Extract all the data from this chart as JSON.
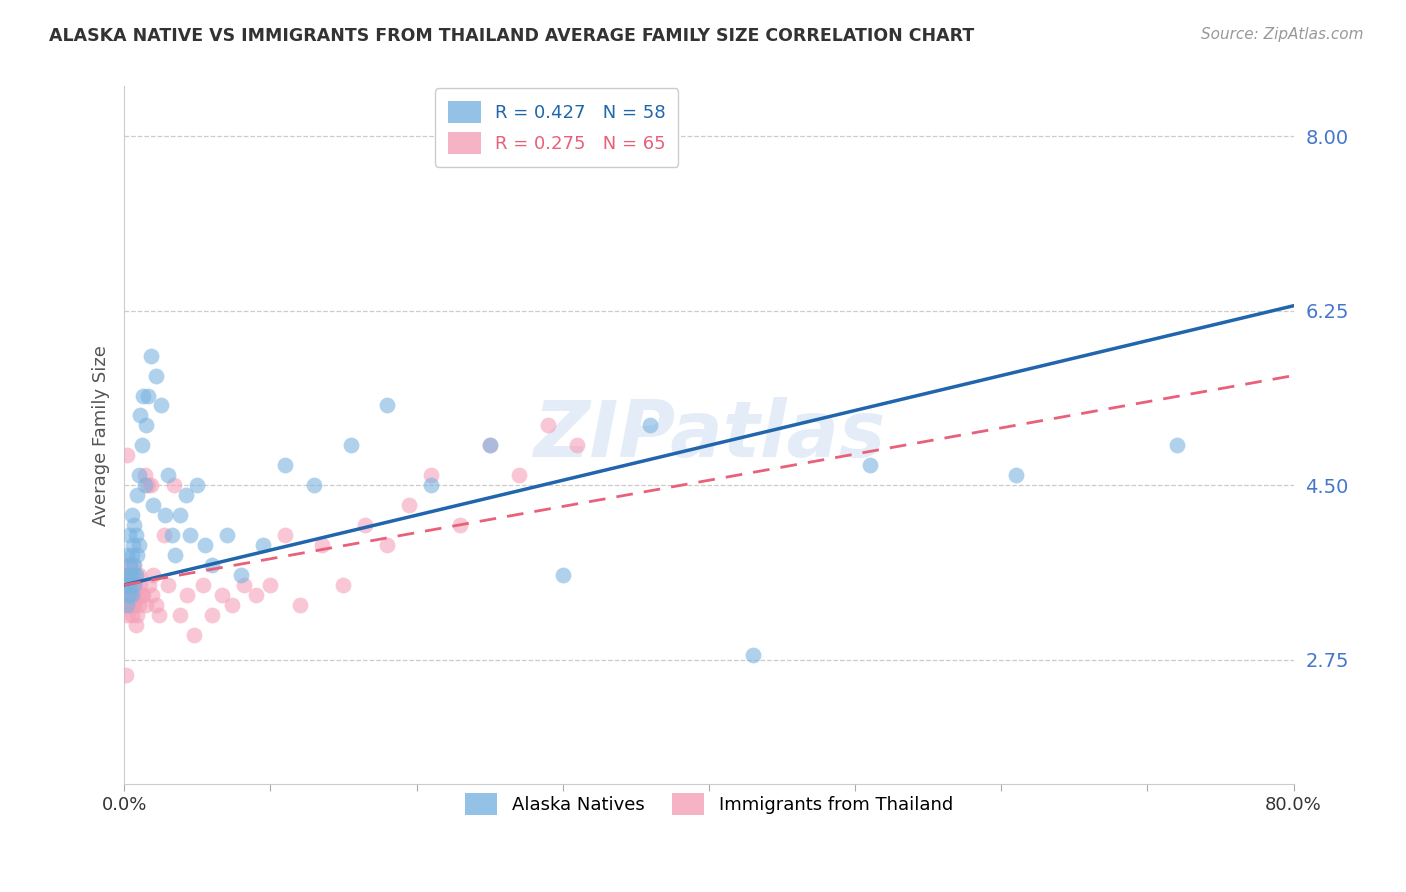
{
  "title": "ALASKA NATIVE VS IMMIGRANTS FROM THAILAND AVERAGE FAMILY SIZE CORRELATION CHART",
  "source": "Source: ZipAtlas.com",
  "ylabel": "Average Family Size",
  "yticks": [
    2.75,
    4.5,
    6.25,
    8.0
  ],
  "xlim": [
    0.0,
    0.8
  ],
  "ylim": [
    1.5,
    8.5
  ],
  "watermark": "ZIPatlas",
  "legend_r_labels": [
    "R = 0.427   N = 58",
    "R = 0.275   N = 65"
  ],
  "legend_labels": [
    "Alaska Natives",
    "Immigrants from Thailand"
  ],
  "blue_color": "#7ab3e0",
  "pink_color": "#f4a0b8",
  "line_blue": "#2166ac",
  "line_pink": "#e8607a",
  "title_color": "#333333",
  "source_color": "#999999",
  "ytick_color": "#4477cc",
  "alaska_natives_x": [
    0.001,
    0.002,
    0.002,
    0.003,
    0.003,
    0.003,
    0.004,
    0.004,
    0.004,
    0.005,
    0.005,
    0.005,
    0.006,
    0.006,
    0.007,
    0.007,
    0.007,
    0.008,
    0.008,
    0.009,
    0.009,
    0.01,
    0.01,
    0.011,
    0.012,
    0.013,
    0.014,
    0.015,
    0.016,
    0.018,
    0.02,
    0.022,
    0.025,
    0.028,
    0.03,
    0.033,
    0.035,
    0.038,
    0.042,
    0.045,
    0.05,
    0.055,
    0.06,
    0.07,
    0.08,
    0.095,
    0.11,
    0.13,
    0.155,
    0.18,
    0.21,
    0.25,
    0.3,
    0.36,
    0.43,
    0.51,
    0.61,
    0.72
  ],
  "alaska_natives_y": [
    3.5,
    3.3,
    3.8,
    3.4,
    3.6,
    4.0,
    3.5,
    3.7,
    3.6,
    3.4,
    3.8,
    4.2,
    3.6,
    3.9,
    3.5,
    3.7,
    4.1,
    3.6,
    4.0,
    3.8,
    4.4,
    3.9,
    4.6,
    5.2,
    4.9,
    5.4,
    4.5,
    5.1,
    5.4,
    5.8,
    4.3,
    5.6,
    5.3,
    4.2,
    4.6,
    4.0,
    3.8,
    4.2,
    4.4,
    4.0,
    4.5,
    3.9,
    3.7,
    4.0,
    3.6,
    3.9,
    4.7,
    4.5,
    4.9,
    5.3,
    4.5,
    4.9,
    3.6,
    5.1,
    2.8,
    4.7,
    4.6,
    4.9
  ],
  "thailand_x": [
    0.001,
    0.001,
    0.002,
    0.002,
    0.002,
    0.003,
    0.003,
    0.003,
    0.003,
    0.004,
    0.004,
    0.004,
    0.005,
    0.005,
    0.005,
    0.006,
    0.006,
    0.006,
    0.007,
    0.007,
    0.007,
    0.008,
    0.008,
    0.009,
    0.009,
    0.01,
    0.01,
    0.011,
    0.012,
    0.013,
    0.014,
    0.015,
    0.016,
    0.017,
    0.018,
    0.019,
    0.02,
    0.022,
    0.024,
    0.027,
    0.03,
    0.034,
    0.038,
    0.043,
    0.048,
    0.054,
    0.06,
    0.067,
    0.074,
    0.082,
    0.09,
    0.1,
    0.11,
    0.12,
    0.135,
    0.15,
    0.165,
    0.18,
    0.195,
    0.21,
    0.23,
    0.25,
    0.27,
    0.29,
    0.31
  ],
  "thailand_y": [
    3.3,
    2.6,
    3.2,
    3.6,
    4.8,
    3.4,
    3.5,
    3.3,
    3.7,
    3.3,
    3.5,
    3.6,
    3.2,
    3.4,
    3.3,
    3.5,
    3.7,
    3.3,
    3.5,
    3.3,
    3.4,
    3.6,
    3.1,
    3.4,
    3.2,
    3.6,
    3.3,
    3.5,
    3.4,
    3.4,
    4.6,
    3.3,
    4.5,
    3.5,
    4.5,
    3.4,
    3.6,
    3.3,
    3.2,
    4.0,
    3.5,
    4.5,
    3.2,
    3.4,
    3.0,
    3.5,
    3.2,
    3.4,
    3.3,
    3.5,
    3.4,
    3.5,
    4.0,
    3.3,
    3.9,
    3.5,
    4.1,
    3.9,
    4.3,
    4.6,
    4.1,
    4.9,
    4.6,
    5.1,
    4.9
  ]
}
